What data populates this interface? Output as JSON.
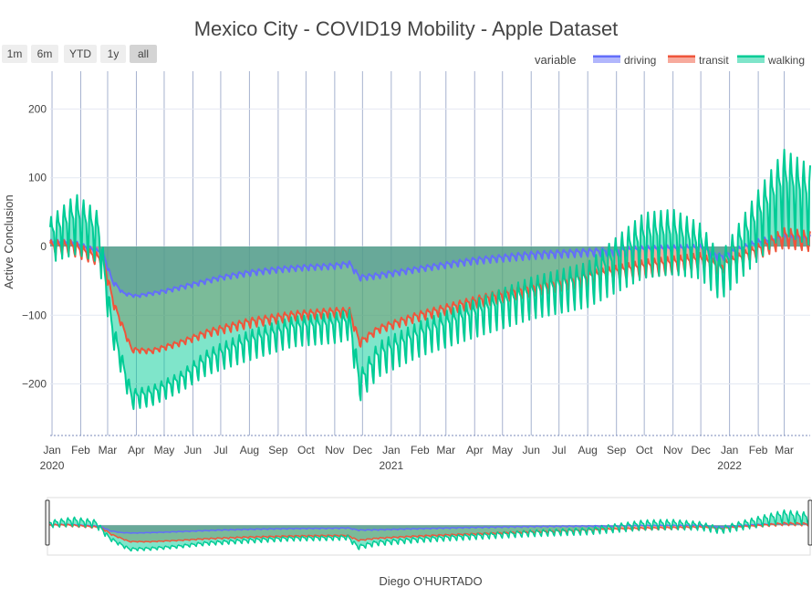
{
  "chart_data": {
    "type": "area",
    "title": "Mexico City - COVID19 Mobility - Apple Dataset",
    "xlabel": "Diego O'HURTADO",
    "ylabel": "Active Conclusion",
    "x_range": [
      "2020-01-13",
      "2022-04-12"
    ],
    "ylim": [
      -275,
      255
    ],
    "y_ticks": [
      -200,
      -100,
      0,
      100,
      200
    ],
    "y_tick_labels": [
      "−200",
      "−100",
      "0",
      "100",
      "200"
    ],
    "x_ticks": [
      {
        "date": "2020-01-15",
        "label": "Jan",
        "year": "2020"
      },
      {
        "date": "2020-02-15",
        "label": "Feb"
      },
      {
        "date": "2020-03-15",
        "label": "Mar"
      },
      {
        "date": "2020-04-15",
        "label": "Apr"
      },
      {
        "date": "2020-05-15",
        "label": "May"
      },
      {
        "date": "2020-06-15",
        "label": "Jun"
      },
      {
        "date": "2020-07-15",
        "label": "Jul"
      },
      {
        "date": "2020-08-15",
        "label": "Aug"
      },
      {
        "date": "2020-09-15",
        "label": "Sep"
      },
      {
        "date": "2020-10-15",
        "label": "Oct"
      },
      {
        "date": "2020-11-15",
        "label": "Nov"
      },
      {
        "date": "2020-12-15",
        "label": "Dec"
      },
      {
        "date": "2021-01-15",
        "label": "Jan",
        "year": "2021"
      },
      {
        "date": "2021-02-15",
        "label": "Feb"
      },
      {
        "date": "2021-03-15",
        "label": "Mar"
      },
      {
        "date": "2021-04-15",
        "label": "Apr"
      },
      {
        "date": "2021-05-15",
        "label": "May"
      },
      {
        "date": "2021-06-15",
        "label": "Jun"
      },
      {
        "date": "2021-07-15",
        "label": "Jul"
      },
      {
        "date": "2021-08-15",
        "label": "Aug"
      },
      {
        "date": "2021-09-15",
        "label": "Sep"
      },
      {
        "date": "2021-10-15",
        "label": "Oct"
      },
      {
        "date": "2021-11-15",
        "label": "Nov"
      },
      {
        "date": "2021-12-15",
        "label": "Dec"
      },
      {
        "date": "2022-01-15",
        "label": "Jan",
        "year": "2022"
      },
      {
        "date": "2022-02-15",
        "label": "Feb"
      },
      {
        "date": "2022-03-15",
        "label": "Mar"
      }
    ],
    "legend": {
      "title": "variable",
      "placement": "top-right"
    },
    "range_selector": [
      "1m",
      "6m",
      "YTD",
      "1y",
      "all"
    ],
    "range_selector_active": "all",
    "range_slider": true,
    "grid": true,
    "series": [
      {
        "name": "driving",
        "color": "#636efa",
        "fill_color": "rgba(99,110,250,0.5)",
        "values": [
          {
            "x": "2020-01-13",
            "y": 5,
            "amp": 8
          },
          {
            "x": "2020-02-05",
            "y": 5,
            "amp": 8
          },
          {
            "x": "2020-03-10",
            "y": -10,
            "amp": 6
          },
          {
            "x": "2020-03-20",
            "y": -50,
            "amp": 5
          },
          {
            "x": "2020-04-01",
            "y": -68,
            "amp": 3
          },
          {
            "x": "2020-04-15",
            "y": -72,
            "amp": 3
          },
          {
            "x": "2020-05-15",
            "y": -65,
            "amp": 4
          },
          {
            "x": "2020-06-15",
            "y": -55,
            "amp": 5
          },
          {
            "x": "2020-07-15",
            "y": -45,
            "amp": 5
          },
          {
            "x": "2020-08-15",
            "y": -38,
            "amp": 6
          },
          {
            "x": "2020-09-15",
            "y": -33,
            "amp": 6
          },
          {
            "x": "2020-10-15",
            "y": -30,
            "amp": 6
          },
          {
            "x": "2020-11-15",
            "y": -28,
            "amp": 6
          },
          {
            "x": "2020-12-01",
            "y": -25,
            "amp": 6
          },
          {
            "x": "2020-12-12",
            "y": -45,
            "amp": 6
          },
          {
            "x": "2021-01-01",
            "y": -42,
            "amp": 6
          },
          {
            "x": "2021-02-15",
            "y": -32,
            "amp": 6
          },
          {
            "x": "2021-04-15",
            "y": -20,
            "amp": 7
          },
          {
            "x": "2021-06-15",
            "y": -12,
            "amp": 8
          },
          {
            "x": "2021-08-15",
            "y": -8,
            "amp": 8
          },
          {
            "x": "2021-10-15",
            "y": -5,
            "amp": 10
          },
          {
            "x": "2021-12-15",
            "y": -3,
            "amp": 10
          },
          {
            "x": "2022-01-05",
            "y": -15,
            "amp": 8
          },
          {
            "x": "2022-02-15",
            "y": 5,
            "amp": 10
          },
          {
            "x": "2022-03-15",
            "y": 12,
            "amp": 12
          },
          {
            "x": "2022-04-12",
            "y": 10,
            "amp": 12
          }
        ]
      },
      {
        "name": "transit",
        "color": "#ef553b",
        "fill_color": "rgba(239,85,59,0.5)",
        "values": [
          {
            "x": "2020-01-13",
            "y": 0,
            "amp": 15
          },
          {
            "x": "2020-02-05",
            "y": 0,
            "amp": 15
          },
          {
            "x": "2020-03-10",
            "y": -20,
            "amp": 12
          },
          {
            "x": "2020-03-22",
            "y": -85,
            "amp": 8
          },
          {
            "x": "2020-04-10",
            "y": -150,
            "amp": 5
          },
          {
            "x": "2020-05-01",
            "y": -152,
            "amp": 5
          },
          {
            "x": "2020-06-01",
            "y": -140,
            "amp": 6
          },
          {
            "x": "2020-07-01",
            "y": -125,
            "amp": 8
          },
          {
            "x": "2020-08-15",
            "y": -110,
            "amp": 10
          },
          {
            "x": "2020-10-01",
            "y": -100,
            "amp": 10
          },
          {
            "x": "2020-11-15",
            "y": -95,
            "amp": 10
          },
          {
            "x": "2020-12-01",
            "y": -95,
            "amp": 10
          },
          {
            "x": "2020-12-12",
            "y": -140,
            "amp": 8
          },
          {
            "x": "2021-01-01",
            "y": -120,
            "amp": 8
          },
          {
            "x": "2021-02-15",
            "y": -100,
            "amp": 10
          },
          {
            "x": "2021-04-15",
            "y": -80,
            "amp": 12
          },
          {
            "x": "2021-06-15",
            "y": -60,
            "amp": 15
          },
          {
            "x": "2021-08-15",
            "y": -45,
            "amp": 15
          },
          {
            "x": "2021-10-15",
            "y": -30,
            "amp": 18
          },
          {
            "x": "2021-12-15",
            "y": -20,
            "amp": 18
          },
          {
            "x": "2022-01-05",
            "y": -30,
            "amp": 12
          },
          {
            "x": "2022-02-15",
            "y": -5,
            "amp": 15
          },
          {
            "x": "2022-03-15",
            "y": 15,
            "amp": 20
          },
          {
            "x": "2022-04-12",
            "y": 10,
            "amp": 20
          }
        ]
      },
      {
        "name": "walking",
        "color": "#00cc96",
        "fill_color": "rgba(0,204,150,0.5)",
        "values": [
          {
            "x": "2020-01-13",
            "y": 15,
            "amp": 45
          },
          {
            "x": "2020-02-10",
            "y": 40,
            "amp": 60
          },
          {
            "x": "2020-03-05",
            "y": 20,
            "amp": 50
          },
          {
            "x": "2020-03-20",
            "y": -120,
            "amp": 25
          },
          {
            "x": "2020-04-10",
            "y": -220,
            "amp": 20
          },
          {
            "x": "2020-05-01",
            "y": -215,
            "amp": 20
          },
          {
            "x": "2020-06-01",
            "y": -195,
            "amp": 20
          },
          {
            "x": "2020-07-01",
            "y": -165,
            "amp": 25
          },
          {
            "x": "2020-08-15",
            "y": -140,
            "amp": 30
          },
          {
            "x": "2020-10-01",
            "y": -120,
            "amp": 30
          },
          {
            "x": "2020-11-15",
            "y": -115,
            "amp": 30
          },
          {
            "x": "2020-12-01",
            "y": -110,
            "amp": 30
          },
          {
            "x": "2020-12-12",
            "y": -200,
            "amp": 30
          },
          {
            "x": "2021-01-01",
            "y": -160,
            "amp": 35
          },
          {
            "x": "2021-02-15",
            "y": -130,
            "amp": 35
          },
          {
            "x": "2021-04-15",
            "y": -100,
            "amp": 38
          },
          {
            "x": "2021-06-15",
            "y": -70,
            "amp": 42
          },
          {
            "x": "2021-08-15",
            "y": -50,
            "amp": 45
          },
          {
            "x": "2021-10-15",
            "y": 10,
            "amp": 65
          },
          {
            "x": "2021-11-15",
            "y": 15,
            "amp": 65
          },
          {
            "x": "2021-12-15",
            "y": 0,
            "amp": 55
          },
          {
            "x": "2022-01-05",
            "y": -40,
            "amp": 45
          },
          {
            "x": "2022-02-15",
            "y": 40,
            "amp": 70
          },
          {
            "x": "2022-03-15",
            "y": 90,
            "amp": 85
          },
          {
            "x": "2022-04-12",
            "y": 70,
            "amp": 80
          }
        ]
      }
    ]
  }
}
